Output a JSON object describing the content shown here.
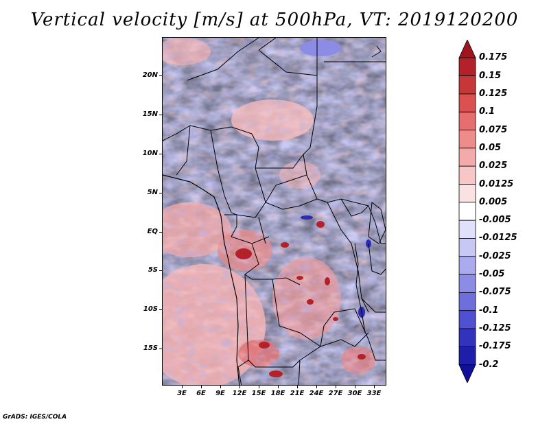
{
  "title": "Vertical velocity [m/s] at 500hPa, VT: 2019120200",
  "footer": "GrADS: IGES/COLA",
  "lat_labels": [
    "20N",
    "15N",
    "10N",
    "5N",
    "EQ",
    "5S",
    "10S",
    "15S"
  ],
  "lon_labels": [
    "3E",
    "6E",
    "9E",
    "12E",
    "15E",
    "18E",
    "21E",
    "24E",
    "27E",
    "30E",
    "33E"
  ],
  "colorbar": {
    "labels": [
      "0.175",
      "0.15",
      "0.125",
      "0.1",
      "0.075",
      "0.05",
      "0.025",
      "0.0125",
      "0.005",
      "-0.005",
      "-0.0125",
      "-0.025",
      "-0.05",
      "-0.075",
      "-0.1",
      "-0.125",
      "-0.175",
      "-0.2"
    ],
    "colors": [
      "#a0141e",
      "#b42128",
      "#c83737",
      "#dc5050",
      "#e66e6e",
      "#ee8c8c",
      "#f4aaaa",
      "#f8c6c6",
      "#fbe2e2",
      "#ffffff",
      "#e0e0fa",
      "#c8c8f4",
      "#aaaaee",
      "#8c8ce6",
      "#6e6edc",
      "#5050d2",
      "#3232be",
      "#1e1eaa",
      "#10109a"
    ]
  }
}
